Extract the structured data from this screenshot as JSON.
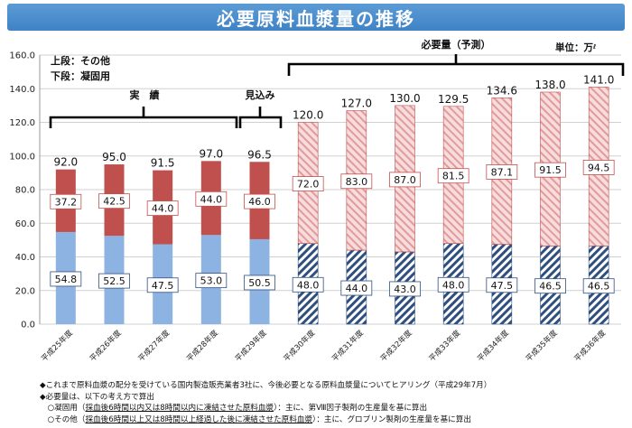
{
  "title": "必要原料血漿量の推移",
  "legend": {
    "upper": "上段：その他",
    "lower": "下段：凝固用"
  },
  "unit": {
    "label": "単位：万",
    "small": "ℓ"
  },
  "groups": {
    "actual": "実　績",
    "outlook": "見込み",
    "forecast": "必要量（予測）"
  },
  "chart_data": {
    "type": "bar",
    "stacked": true,
    "categories": [
      "平成25年度",
      "平成26年度",
      "平成27年度",
      "平成28年度",
      "平成29年度",
      "平成30年度",
      "平成31年度",
      "平成32年度",
      "平成33年度",
      "平成34年度",
      "平成35年度",
      "平成36年度"
    ],
    "series": [
      {
        "name": "凝固用",
        "values": [
          54.8,
          52.5,
          47.5,
          53.0,
          50.5,
          48.0,
          44.0,
          43.0,
          48.0,
          47.5,
          46.5,
          46.5
        ],
        "color": "#8db3e2"
      },
      {
        "name": "その他",
        "values": [
          37.2,
          42.5,
          44.0,
          44.0,
          46.0,
          72.0,
          83.0,
          87.0,
          81.5,
          87.1,
          91.5,
          94.5
        ],
        "color": "#c0504d"
      }
    ],
    "totals": [
      "92.0",
      "95.0",
      "91.5",
      "97.0",
      "96.5",
      "120.0",
      "127.0",
      "130.0",
      "129.5",
      "134.6",
      "138.0",
      "141.0"
    ],
    "lower_labels": [
      "54.8",
      "52.5",
      "47.5",
      "53.0",
      "50.5",
      "48.0",
      "44.0",
      "43.0",
      "48.0",
      "47.5",
      "46.5",
      "46.5"
    ],
    "upper_labels": [
      "37.2",
      "42.5",
      "44.0",
      "44.0",
      "46.0",
      "72.0",
      "83.0",
      "87.0",
      "81.5",
      "87.1",
      "91.5",
      "94.5"
    ],
    "forecast_from_index": 5,
    "ylim": [
      0,
      160
    ],
    "yticks": [
      "0.0",
      "20.0",
      "40.0",
      "60.0",
      "80.0",
      "100.0",
      "120.0",
      "140.0",
      "160.0"
    ],
    "grid": true
  },
  "notes": [
    {
      "prefix": "◆",
      "text": "これまで原料血漿の配分を受けている国内製造販売業者3社に、今後必要となる原料血漿量についてヒアリング（平成29年7月）"
    },
    {
      "prefix": "◆",
      "text": "必要量は、以下の考え方で算出"
    },
    {
      "prefix": "　○",
      "text": "凝固用（",
      "u": "採血後6時間以内又は8時間以内に凍結させた原料血漿",
      "rest": "）：主に、第Ⅷ因子製剤の生産量を基に算出"
    },
    {
      "prefix": "　○",
      "text": "その他（",
      "u": "採血後6時間以上又は8時間以上経過した後に凍結させた原料血漿",
      "rest": "）：主に、グロブリン製剤の生産量を基に算出"
    }
  ]
}
